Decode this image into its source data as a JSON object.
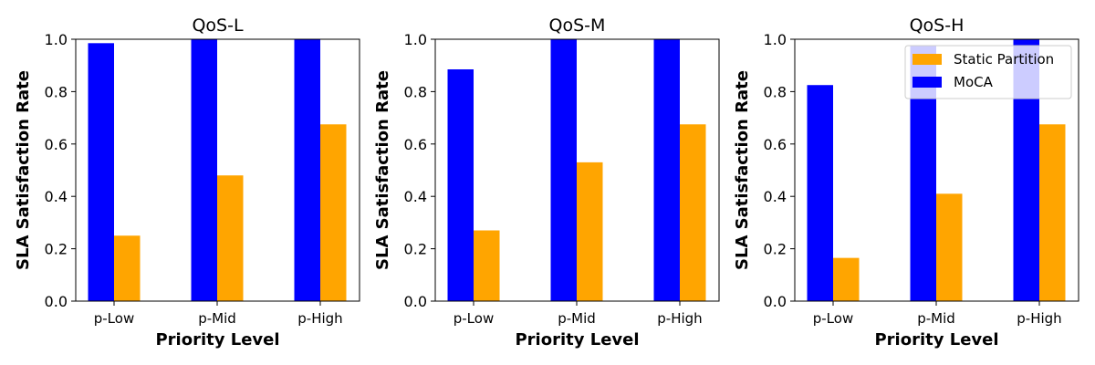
{
  "chart_data": [
    {
      "type": "bar",
      "title": "QoS-L",
      "xlabel": "Priority Level",
      "ylabel": "SLA Satisfaction Rate",
      "categories": [
        "p-Low",
        "p-Mid",
        "p-High"
      ],
      "ylim": [
        0,
        1.0
      ],
      "yticks": [
        "0.0",
        "0.2",
        "0.4",
        "0.6",
        "0.8",
        "1.0"
      ],
      "grid": false,
      "series": [
        {
          "name": "MoCA",
          "color": "#0000ff",
          "values": [
            0.985,
            1.0,
            1.0
          ]
        },
        {
          "name": "Static Partition",
          "color": "#ffa500",
          "values": [
            0.25,
            0.48,
            0.675
          ]
        }
      ]
    },
    {
      "type": "bar",
      "title": "QoS-M",
      "xlabel": "Priority Level",
      "ylabel": "SLA Satisfaction Rate",
      "categories": [
        "p-Low",
        "p-Mid",
        "p-High"
      ],
      "ylim": [
        0,
        1.0
      ],
      "yticks": [
        "0.0",
        "0.2",
        "0.4",
        "0.6",
        "0.8",
        "1.0"
      ],
      "grid": false,
      "series": [
        {
          "name": "MoCA",
          "color": "#0000ff",
          "values": [
            0.885,
            1.0,
            1.0
          ]
        },
        {
          "name": "Static Partition",
          "color": "#ffa500",
          "values": [
            0.27,
            0.53,
            0.675
          ]
        }
      ]
    },
    {
      "type": "bar",
      "title": "QoS-H",
      "xlabel": "Priority Level",
      "ylabel": "SLA Satisfaction Rate",
      "categories": [
        "p-Low",
        "p-Mid",
        "p-High"
      ],
      "ylim": [
        0,
        1.0
      ],
      "yticks": [
        "0.0",
        "0.2",
        "0.4",
        "0.6",
        "0.8",
        "1.0"
      ],
      "grid": false,
      "legend": {
        "placement": "top-right",
        "entries": [
          {
            "label": "Static Partition",
            "color": "#ffa500"
          },
          {
            "label": "MoCA",
            "color": "#0000ff"
          }
        ]
      },
      "series": [
        {
          "name": "MoCA",
          "color": "#0000ff",
          "values": [
            0.825,
            0.975,
            1.0
          ]
        },
        {
          "name": "Static Partition",
          "color": "#ffa500",
          "values": [
            0.165,
            0.41,
            0.675
          ]
        }
      ]
    }
  ]
}
